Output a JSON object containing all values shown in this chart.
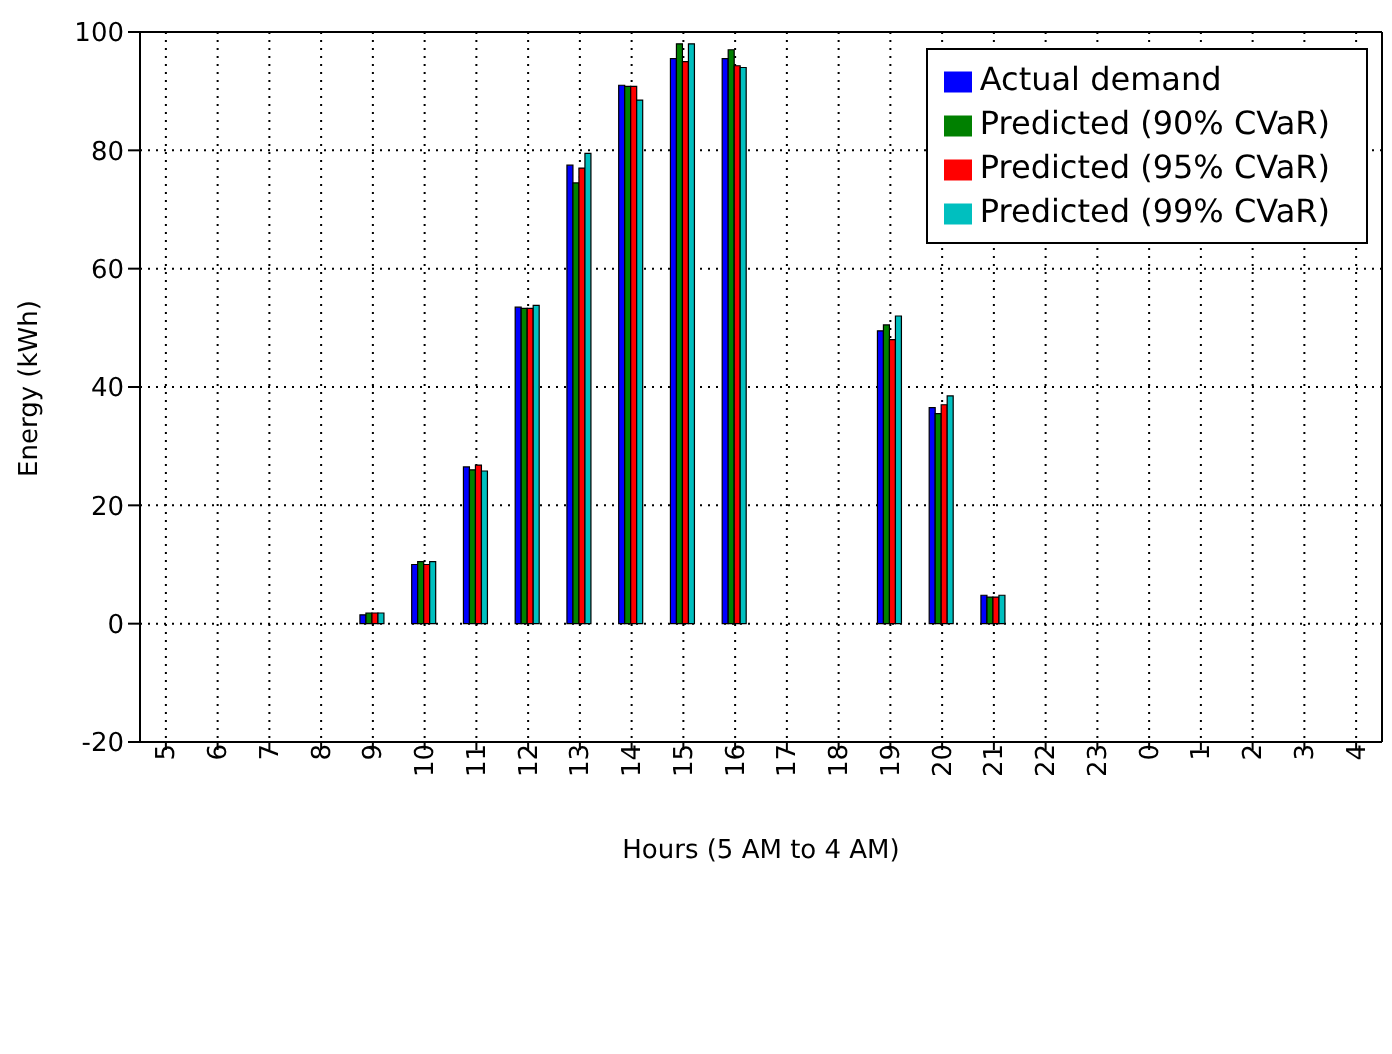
{
  "chart_data": {
    "type": "bar",
    "xlabel": "Hours (5 AM to 4 AM)",
    "ylabel": "Energy (kWh)",
    "categories": [
      "5",
      "6",
      "7",
      "8",
      "9",
      "10",
      "11",
      "12",
      "13",
      "14",
      "15",
      "16",
      "17",
      "18",
      "19",
      "20",
      "21",
      "22",
      "23",
      "0",
      "1",
      "2",
      "3",
      "4"
    ],
    "series": [
      {
        "name": "Actual demand",
        "color": "#0000ff",
        "values": [
          0,
          0,
          0,
          0,
          1.5,
          10,
          26.5,
          53.5,
          77.5,
          91,
          95.5,
          95.5,
          null,
          null,
          49.5,
          36.5,
          4.8,
          0,
          0,
          0,
          0,
          0,
          0,
          0
        ]
      },
      {
        "name": "Predicted (90% CVaR)",
        "color": "#008000",
        "values": [
          0,
          0,
          0,
          0,
          1.8,
          10.5,
          26,
          53.3,
          74.5,
          90.8,
          98,
          97,
          null,
          null,
          50.5,
          35.5,
          4.5,
          0,
          0,
          0,
          0,
          0,
          0,
          0
        ]
      },
      {
        "name": "Predicted (95% CVaR)",
        "color": "#ff0000",
        "values": [
          0,
          0,
          0,
          0,
          1.8,
          10,
          26.8,
          53.3,
          77,
          90.8,
          95,
          94.3,
          null,
          null,
          48,
          37,
          4.5,
          0,
          0,
          0,
          0,
          0,
          0,
          0
        ]
      },
      {
        "name": "Predicted (99% CVaR)",
        "color": "#00bfbf",
        "values": [
          0,
          0,
          0,
          0,
          1.8,
          10.5,
          25.8,
          53.8,
          79.5,
          88.5,
          98,
          94,
          null,
          null,
          52,
          38.5,
          4.8,
          0,
          0,
          0,
          0,
          0,
          0,
          0
        ]
      }
    ],
    "ylim": [
      -20,
      100
    ],
    "yticks": [
      -20,
      0,
      20,
      40,
      60,
      80,
      100
    ],
    "grid": true,
    "legend": "top right"
  }
}
